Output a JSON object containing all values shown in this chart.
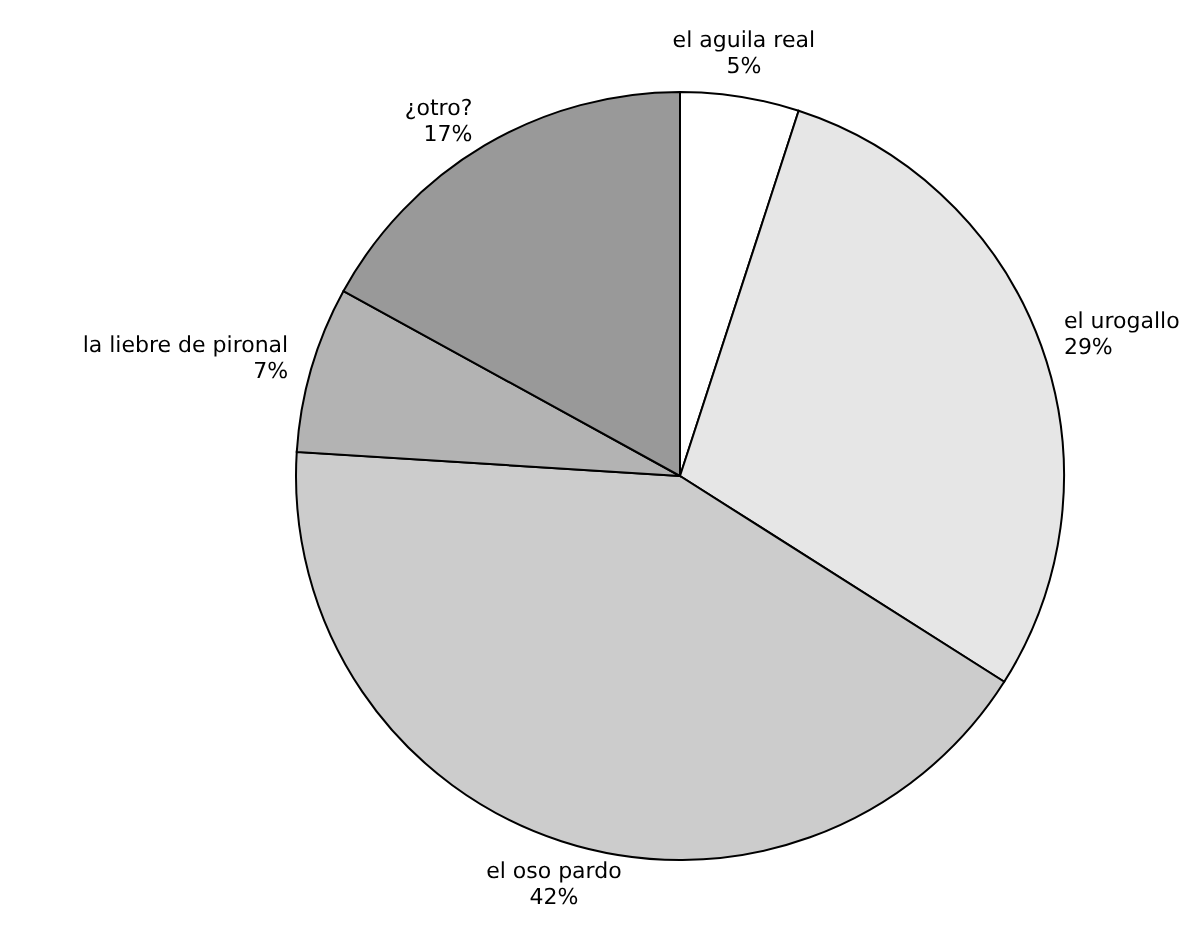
{
  "chart_data": {
    "type": "pie",
    "categories": [
      "el aguila real",
      "el urogallo",
      "el oso pardo",
      "la liebre de pironal",
      "¿otro?"
    ],
    "values": [
      5,
      29,
      42,
      7,
      17
    ],
    "colors": [
      "#ffffff",
      "#e6e6e6",
      "#cccccc",
      "#b3b3b3",
      "#999999"
    ],
    "value_labels": [
      "5%",
      "29%",
      "42%",
      "7%",
      "17%"
    ]
  }
}
